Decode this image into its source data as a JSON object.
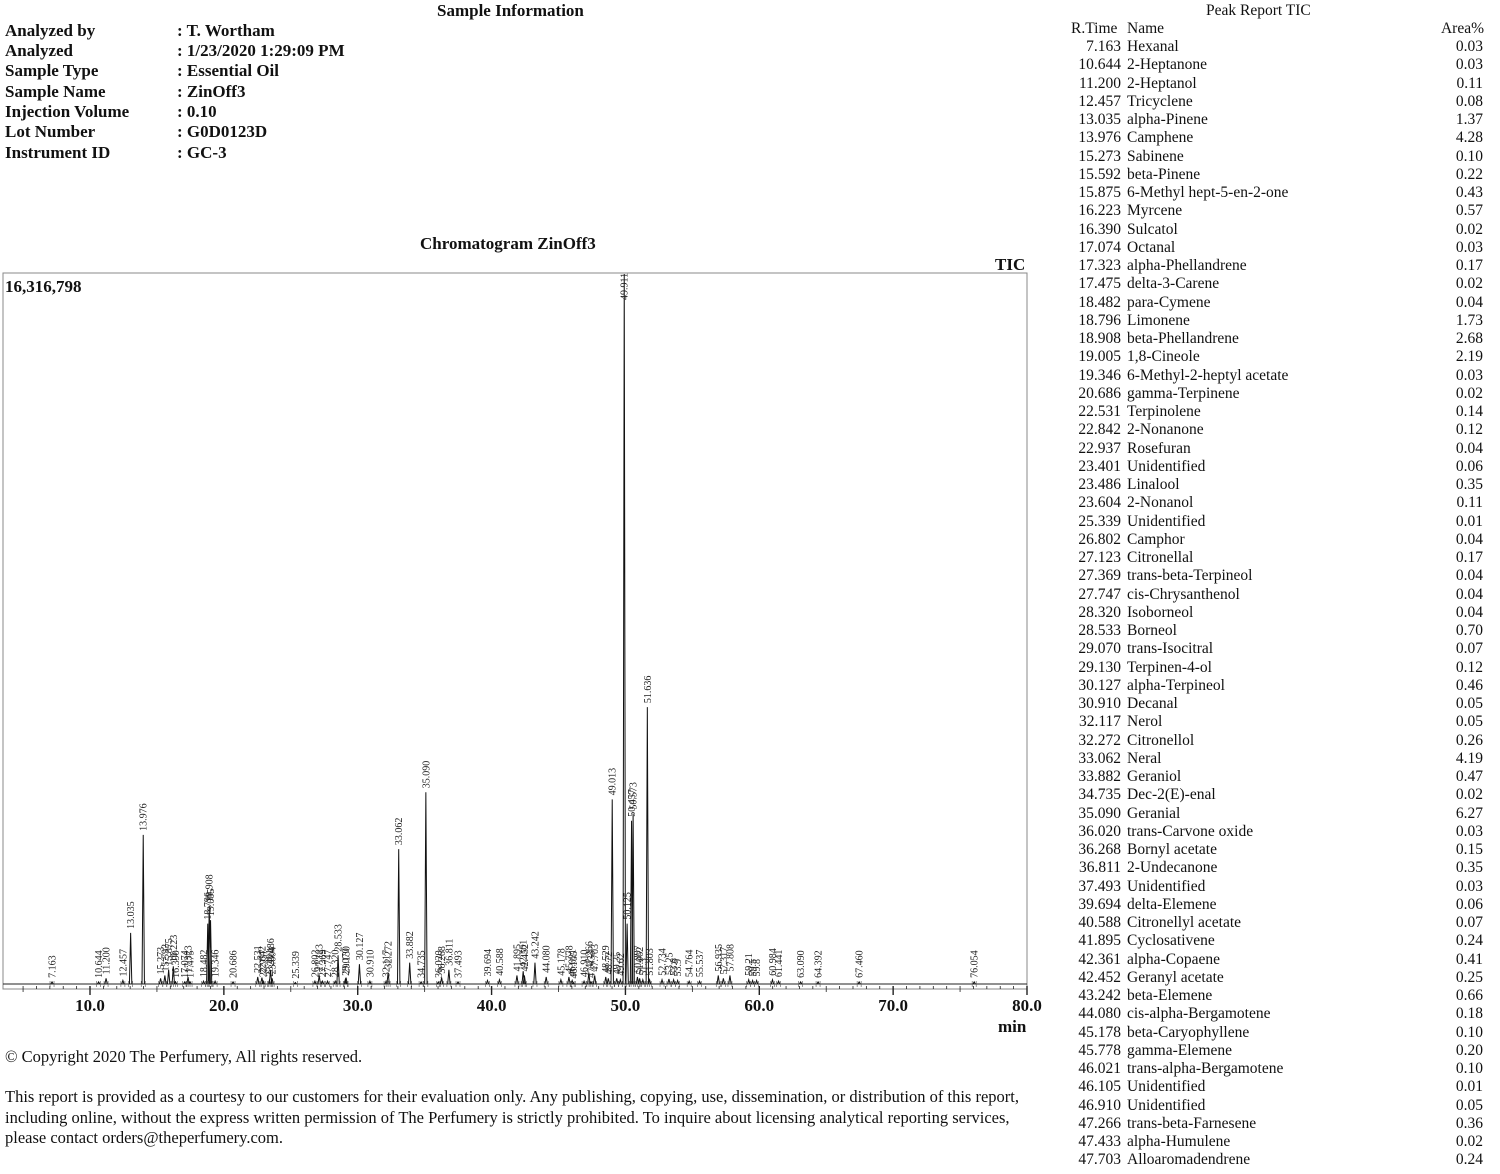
{
  "sample_info": {
    "title": "Sample Information",
    "rows": [
      {
        "label": "Analyzed by",
        "value": ": T. Wortham"
      },
      {
        "label": "Analyzed",
        "value": ": 1/23/2020 1:29:09 PM"
      },
      {
        "label": "Sample Type",
        "value": ": Essential Oil"
      },
      {
        "label": "Sample Name",
        "value": ": ZinOff3"
      },
      {
        "label": "Injection Volume",
        "value": ": 0.10"
      },
      {
        "label": "Lot Number",
        "value": ": G0D0123D"
      },
      {
        "label": "Instrument ID",
        "value": ": GC-3"
      }
    ]
  },
  "chart_data": {
    "type": "line",
    "title": "Chromatogram  ZinOff3",
    "trace_label": "TIC",
    "max_intensity_label": "16,316,798",
    "xlabel": "min",
    "xlim": [
      3.5,
      80.0
    ],
    "ylim": [
      0,
      1.0
    ],
    "xticks": [
      "10.0",
      "20.0",
      "30.0",
      "40.0",
      "50.0",
      "60.0",
      "70.0",
      "80.0"
    ],
    "xtick_values": [
      10,
      20,
      30,
      40,
      50,
      60,
      70,
      80
    ],
    "peaks": [
      {
        "rt": 7.163,
        "label": "7.163",
        "h": 0.003
      },
      {
        "rt": 10.644,
        "label": "10.644",
        "h": 0.003
      },
      {
        "rt": 11.2,
        "label": "11.200",
        "h": 0.008
      },
      {
        "rt": 12.457,
        "label": "12.457",
        "h": 0.005
      },
      {
        "rt": 13.035,
        "label": "13.035",
        "h": 0.072
      },
      {
        "rt": 13.976,
        "label": "13.976",
        "h": 0.21
      },
      {
        "rt": 15.273,
        "label": "15.273",
        "h": 0.008
      },
      {
        "rt": 15.592,
        "label": "15.592",
        "h": 0.012
      },
      {
        "rt": 15.875,
        "label": "15.875",
        "h": 0.02
      },
      {
        "rt": 16.223,
        "label": "16.223",
        "h": 0.025
      },
      {
        "rt": 16.39,
        "label": "16.390",
        "h": 0.003
      },
      {
        "rt": 17.074,
        "label": "17.074",
        "h": 0.003
      },
      {
        "rt": 17.323,
        "label": "17.323",
        "h": 0.01
      },
      {
        "rt": 17.475,
        "label": "17.475",
        "h": 0.003
      },
      {
        "rt": 18.482,
        "label": "18.482",
        "h": 0.004
      },
      {
        "rt": 18.796,
        "label": "18.796",
        "h": 0.085
      },
      {
        "rt": 18.908,
        "label": "18.908",
        "h": 0.11
      },
      {
        "rt": 19.005,
        "label": "19.005",
        "h": 0.09
      },
      {
        "rt": 19.346,
        "label": "19.346",
        "h": 0.004
      },
      {
        "rt": 20.686,
        "label": "20.686",
        "h": 0.003
      },
      {
        "rt": 22.531,
        "label": "22.531",
        "h": 0.01
      },
      {
        "rt": 22.842,
        "label": "22.842",
        "h": 0.009
      },
      {
        "rt": 22.937,
        "label": "22.937",
        "h": 0.004
      },
      {
        "rt": 23.401,
        "label": "23.401",
        "h": 0.005
      },
      {
        "rt": 23.486,
        "label": "23.486",
        "h": 0.02
      },
      {
        "rt": 23.604,
        "label": "23.604",
        "h": 0.008
      },
      {
        "rt": 25.339,
        "label": "25.339",
        "h": 0.002
      },
      {
        "rt": 26.802,
        "label": "26.802",
        "h": 0.004
      },
      {
        "rt": 27.123,
        "label": "27.123",
        "h": 0.012
      },
      {
        "rt": 27.369,
        "label": "27.369",
        "h": 0.004
      },
      {
        "rt": 27.747,
        "label": "27.747",
        "h": 0.004
      },
      {
        "rt": 28.32,
        "label": "28.320",
        "h": 0.004
      },
      {
        "rt": 28.533,
        "label": "28.533",
        "h": 0.04
      },
      {
        "rt": 29.07,
        "label": "29.070",
        "h": 0.006
      },
      {
        "rt": 29.13,
        "label": "29.130",
        "h": 0.009
      },
      {
        "rt": 30.127,
        "label": "30.127",
        "h": 0.028
      },
      {
        "rt": 30.91,
        "label": "30.910",
        "h": 0.004
      },
      {
        "rt": 32.117,
        "label": "32.117",
        "h": 0.004
      },
      {
        "rt": 32.272,
        "label": "32.272",
        "h": 0.016
      },
      {
        "rt": 33.062,
        "label": "33.062",
        "h": 0.19
      },
      {
        "rt": 33.882,
        "label": "33.882",
        "h": 0.03
      },
      {
        "rt": 34.735,
        "label": "34.735",
        "h": 0.003
      },
      {
        "rt": 35.09,
        "label": "35.090",
        "h": 0.27
      },
      {
        "rt": 36.02,
        "label": "36.020",
        "h": 0.003
      },
      {
        "rt": 36.268,
        "label": "36.268",
        "h": 0.009
      },
      {
        "rt": 36.811,
        "label": "36.811",
        "h": 0.02
      },
      {
        "rt": 37.493,
        "label": "37.493",
        "h": 0.003
      },
      {
        "rt": 39.694,
        "label": "39.694",
        "h": 0.005
      },
      {
        "rt": 40.588,
        "label": "40.588",
        "h": 0.006
      },
      {
        "rt": 41.895,
        "label": "41.895",
        "h": 0.012
      },
      {
        "rt": 42.361,
        "label": "42.361",
        "h": 0.018
      },
      {
        "rt": 42.452,
        "label": "42.452",
        "h": 0.012
      },
      {
        "rt": 43.242,
        "label": "43.242",
        "h": 0.03
      },
      {
        "rt": 44.08,
        "label": "44.080",
        "h": 0.01
      },
      {
        "rt": 45.178,
        "label": "45.178",
        "h": 0.006
      },
      {
        "rt": 45.778,
        "label": "45.778",
        "h": 0.01
      },
      {
        "rt": 46.021,
        "label": "46.021",
        "h": 0.005
      },
      {
        "rt": 46.105,
        "label": "46.105",
        "h": 0.002
      },
      {
        "rt": 46.91,
        "label": "46.910",
        "h": 0.004
      },
      {
        "rt": 47.266,
        "label": "47.266",
        "h": 0.016
      },
      {
        "rt": 47.433,
        "label": "47.433",
        "h": 0.003
      },
      {
        "rt": 47.703,
        "label": "47.703",
        "h": 0.012
      },
      {
        "rt": 48.529,
        "label": "48.529",
        "h": 0.01
      },
      {
        "rt": 48.72,
        "label": "48.72",
        "h": 0.008
      },
      {
        "rt": 49.013,
        "label": "49.013",
        "h": 0.26
      },
      {
        "rt": 49.35,
        "label": "49.35",
        "h": 0.008
      },
      {
        "rt": 49.62,
        "label": "49.62",
        "h": 0.006
      },
      {
        "rt": 49.911,
        "label": "49.911",
        "h": 1.0
      },
      {
        "rt": 50.125,
        "label": "50.125",
        "h": 0.085
      },
      {
        "rt": 50.457,
        "label": "50.457",
        "h": 0.23
      },
      {
        "rt": 50.573,
        "label": "50.573",
        "h": 0.24
      },
      {
        "rt": 50.897,
        "label": "50.897",
        "h": 0.01
      },
      {
        "rt": 51.062,
        "label": "51.062",
        "h": 0.008
      },
      {
        "rt": 51.3,
        "label": "51.3",
        "h": 0.006
      },
      {
        "rt": 51.636,
        "label": "51.636",
        "h": 0.39
      },
      {
        "rt": 51.803,
        "label": "51.803",
        "h": 0.006
      },
      {
        "rt": 52.734,
        "label": "52.734",
        "h": 0.006
      },
      {
        "rt": 53.25,
        "label": "53.25",
        "h": 0.007
      },
      {
        "rt": 53.6,
        "label": "53.6",
        "h": 0.006
      },
      {
        "rt": 53.9,
        "label": "53.9",
        "h": 0.005
      },
      {
        "rt": 54.764,
        "label": "54.764",
        "h": 0.004
      },
      {
        "rt": 55.537,
        "label": "55.537",
        "h": 0.004
      },
      {
        "rt": 56.935,
        "label": "56.935",
        "h": 0.012
      },
      {
        "rt": 57.317,
        "label": "57.317",
        "h": 0.008
      },
      {
        "rt": 57.808,
        "label": "57.808",
        "h": 0.012
      },
      {
        "rt": 59.21,
        "label": "59.21",
        "h": 0.006
      },
      {
        "rt": 59.5,
        "label": "59.5",
        "h": 0.005
      },
      {
        "rt": 59.8,
        "label": "59.8",
        "h": 0.005
      },
      {
        "rt": 60.984,
        "label": "60.984",
        "h": 0.006
      },
      {
        "rt": 61.441,
        "label": "61.441",
        "h": 0.004
      },
      {
        "rt": 63.09,
        "label": "63.090",
        "h": 0.003
      },
      {
        "rt": 64.392,
        "label": "64.392",
        "h": 0.003
      },
      {
        "rt": 67.46,
        "label": "67.460",
        "h": 0.003
      },
      {
        "rt": 76.054,
        "label": "76.054",
        "h": 0.003
      }
    ]
  },
  "peak_report": {
    "title": "Peak Report TIC",
    "headers": {
      "rt": "R.Time",
      "name": "Name",
      "area": "Area%"
    },
    "rows": [
      {
        "rt": "7.163",
        "name": "Hexanal",
        "area": "0.03"
      },
      {
        "rt": "10.644",
        "name": "2-Heptanone",
        "area": "0.03"
      },
      {
        "rt": "11.200",
        "name": "2-Heptanol",
        "area": "0.11"
      },
      {
        "rt": "12.457",
        "name": "Tricyclene",
        "area": "0.08"
      },
      {
        "rt": "13.035",
        "name": "alpha-Pinene",
        "area": "1.37"
      },
      {
        "rt": "13.976",
        "name": "Camphene",
        "area": "4.28"
      },
      {
        "rt": "15.273",
        "name": "Sabinene",
        "area": "0.10"
      },
      {
        "rt": "15.592",
        "name": "beta-Pinene",
        "area": "0.22"
      },
      {
        "rt": "15.875",
        "name": "6-Methyl hept-5-en-2-one",
        "area": "0.43"
      },
      {
        "rt": "16.223",
        "name": "Myrcene",
        "area": "0.57"
      },
      {
        "rt": "16.390",
        "name": "Sulcatol",
        "area": "0.02"
      },
      {
        "rt": "17.074",
        "name": "Octanal",
        "area": "0.03"
      },
      {
        "rt": "17.323",
        "name": "alpha-Phellandrene",
        "area": "0.17"
      },
      {
        "rt": "17.475",
        "name": "delta-3-Carene",
        "area": "0.02"
      },
      {
        "rt": "18.482",
        "name": "para-Cymene",
        "area": "0.04"
      },
      {
        "rt": "18.796",
        "name": "Limonene",
        "area": "1.73"
      },
      {
        "rt": "18.908",
        "name": "beta-Phellandrene",
        "area": "2.68"
      },
      {
        "rt": "19.005",
        "name": "1,8-Cineole",
        "area": "2.19"
      },
      {
        "rt": "19.346",
        "name": "6-Methyl-2-heptyl acetate",
        "area": "0.03"
      },
      {
        "rt": "20.686",
        "name": "gamma-Terpinene",
        "area": "0.02"
      },
      {
        "rt": "22.531",
        "name": "Terpinolene",
        "area": "0.14"
      },
      {
        "rt": "22.842",
        "name": "2-Nonanone",
        "area": "0.12"
      },
      {
        "rt": "22.937",
        "name": "Rosefuran",
        "area": "0.04"
      },
      {
        "rt": "23.401",
        "name": "Unidentified",
        "area": "0.06"
      },
      {
        "rt": "23.486",
        "name": "Linalool",
        "area": "0.35"
      },
      {
        "rt": "23.604",
        "name": "2-Nonanol",
        "area": "0.11"
      },
      {
        "rt": "25.339",
        "name": "Unidentified",
        "area": "0.01"
      },
      {
        "rt": "26.802",
        "name": "Camphor",
        "area": "0.04"
      },
      {
        "rt": "27.123",
        "name": "Citronellal",
        "area": "0.17"
      },
      {
        "rt": "27.369",
        "name": "trans-beta-Terpineol",
        "area": "0.04"
      },
      {
        "rt": "27.747",
        "name": "cis-Chrysanthenol",
        "area": "0.04"
      },
      {
        "rt": "28.320",
        "name": "Isoborneol",
        "area": "0.04"
      },
      {
        "rt": "28.533",
        "name": "Borneol",
        "area": "0.70"
      },
      {
        "rt": "29.070",
        "name": "trans-Isocitral",
        "area": "0.07"
      },
      {
        "rt": "29.130",
        "name": "Terpinen-4-ol",
        "area": "0.12"
      },
      {
        "rt": "30.127",
        "name": "alpha-Terpineol",
        "area": "0.46"
      },
      {
        "rt": "30.910",
        "name": "Decanal",
        "area": "0.05"
      },
      {
        "rt": "32.117",
        "name": "Nerol",
        "area": "0.05"
      },
      {
        "rt": "32.272",
        "name": "Citronellol",
        "area": "0.26"
      },
      {
        "rt": "33.062",
        "name": "Neral",
        "area": "4.19"
      },
      {
        "rt": "33.882",
        "name": "Geraniol",
        "area": "0.47"
      },
      {
        "rt": "34.735",
        "name": "Dec-2(E)-enal",
        "area": "0.02"
      },
      {
        "rt": "35.090",
        "name": "Geranial",
        "area": "6.27"
      },
      {
        "rt": "36.020",
        "name": "trans-Carvone oxide",
        "area": "0.03"
      },
      {
        "rt": "36.268",
        "name": "Bornyl acetate",
        "area": "0.15"
      },
      {
        "rt": "36.811",
        "name": "2-Undecanone",
        "area": "0.35"
      },
      {
        "rt": "37.493",
        "name": "Unidentified",
        "area": "0.03"
      },
      {
        "rt": "39.694",
        "name": "delta-Elemene",
        "area": "0.06"
      },
      {
        "rt": "40.588",
        "name": "Citronellyl acetate",
        "area": "0.07"
      },
      {
        "rt": "41.895",
        "name": "Cyclosativene",
        "area": "0.24"
      },
      {
        "rt": "42.361",
        "name": "alpha-Copaene",
        "area": "0.41"
      },
      {
        "rt": "42.452",
        "name": "Geranyl acetate",
        "area": "0.25"
      },
      {
        "rt": "43.242",
        "name": "beta-Elemene",
        "area": "0.66"
      },
      {
        "rt": "44.080",
        "name": "cis-alpha-Bergamotene",
        "area": "0.18"
      },
      {
        "rt": "45.178",
        "name": "beta-Caryophyllene",
        "area": "0.10"
      },
      {
        "rt": "45.778",
        "name": "gamma-Elemene",
        "area": "0.20"
      },
      {
        "rt": "46.021",
        "name": "trans-alpha-Bergamotene",
        "area": "0.10"
      },
      {
        "rt": "46.105",
        "name": "Unidentified",
        "area": "0.01"
      },
      {
        "rt": "46.910",
        "name": "Unidentified",
        "area": "0.05"
      },
      {
        "rt": "47.266",
        "name": "trans-beta-Farnesene",
        "area": "0.36"
      },
      {
        "rt": "47.433",
        "name": "alpha-Humulene",
        "area": "0.02"
      },
      {
        "rt": "47.703",
        "name": "Alloaromadendrene",
        "area": "0.24"
      }
    ]
  },
  "footer": {
    "copyright": "© Copyright 2020 The Perfumery, All rights reserved.",
    "disclaimer": "This report is provided as a courtesy to our customers for their evaluation only. Any publishing, copying, use, dissemination, or distribution of this report, including online, without the express written permission of The Perfumery is strictly prohibited. To inquire about licensing analytical reporting services, please contact orders@theperfumery.com."
  }
}
